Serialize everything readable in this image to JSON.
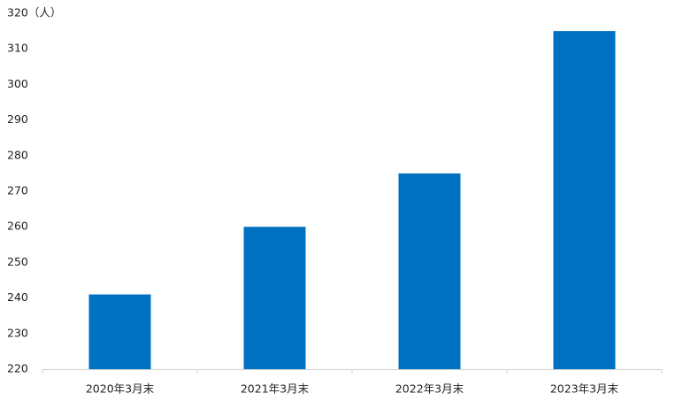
{
  "chart_data": {
    "type": "bar",
    "categories": [
      "2020年3月末",
      "2021年3月末",
      "2022年3月末",
      "2023年3月末"
    ],
    "values": [
      241,
      260,
      275,
      315
    ],
    "color": "#0070c0",
    "ylim": [
      220,
      320
    ],
    "yticks": [
      220,
      230,
      240,
      250,
      260,
      270,
      280,
      290,
      300,
      310,
      {
        "value": 320,
        "label": "320（人）"
      }
    ],
    "grid": false
  }
}
